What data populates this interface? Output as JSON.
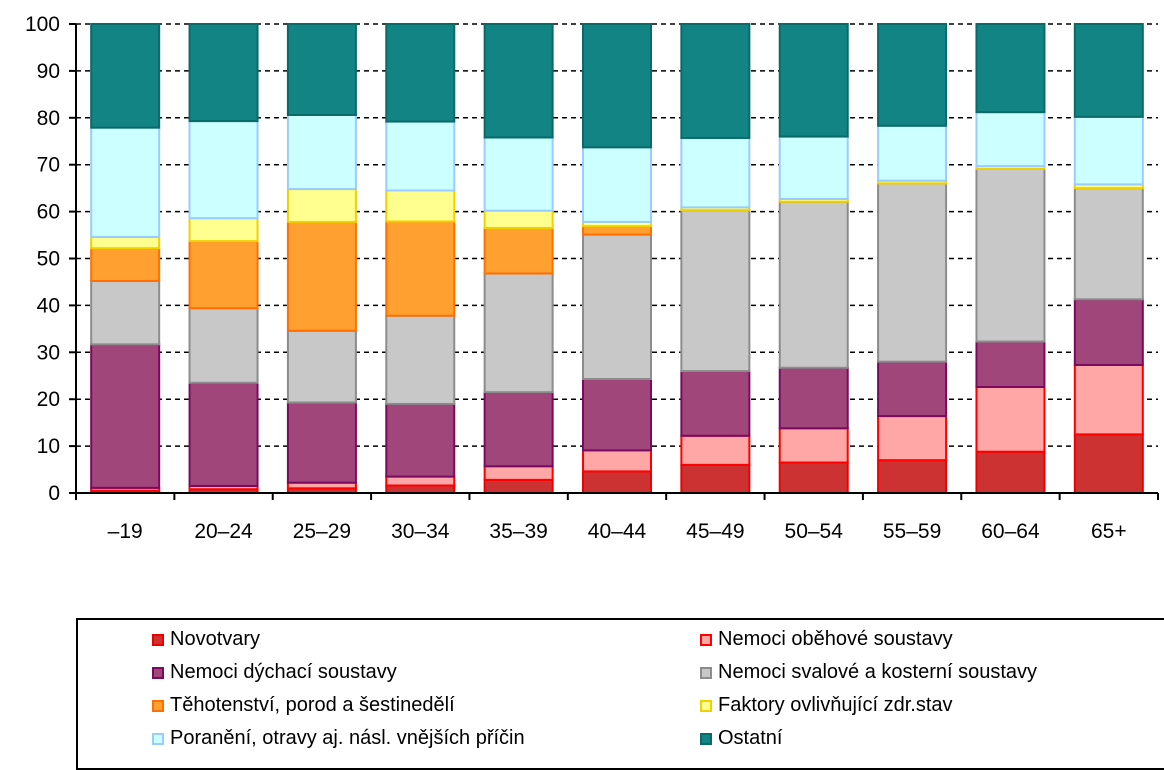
{
  "chart_data": {
    "type": "bar",
    "stacked": true,
    "title": "",
    "xlabel": "",
    "ylabel": "",
    "ylim": [
      0,
      100
    ],
    "yticks": [
      0,
      10,
      20,
      30,
      40,
      50,
      60,
      70,
      80,
      90,
      100
    ],
    "grid": true,
    "legend_position": "bottom",
    "categories": [
      "–19",
      "20–24",
      "25–29",
      "30–34",
      "35–39",
      "40–44",
      "45–49",
      "50–54",
      "55–59",
      "60–64",
      "65+"
    ],
    "series": [
      {
        "name": "Novotvary",
        "fill": "#cd3232",
        "stroke": "#ee0000",
        "values": [
          0.5,
          0.8,
          1.0,
          1.6,
          2.8,
          4.6,
          6.0,
          6.5,
          7.0,
          8.8,
          12.5
        ]
      },
      {
        "name": "Nemoci oběhové soustavy",
        "fill": "#ffa6a6",
        "stroke": "#ff0000",
        "values": [
          0.6,
          0.7,
          1.2,
          1.9,
          2.9,
          4.5,
          6.2,
          7.3,
          9.4,
          13.8,
          14.8
        ]
      },
      {
        "name": "Nemoci dýchací soustavy",
        "fill": "#a0467a",
        "stroke": "#7a0a60",
        "values": [
          30.6,
          22.0,
          17.1,
          15.5,
          15.8,
          15.2,
          13.8,
          12.9,
          11.6,
          9.7,
          14.0
        ]
      },
      {
        "name": "Nemoci svalové a kosterní soustavy",
        "fill": "#c8c8c8",
        "stroke": "#8c8c8c",
        "values": [
          13.5,
          15.9,
          15.3,
          18.8,
          25.3,
          30.8,
          34.3,
          35.4,
          38.0,
          36.8,
          23.7
        ]
      },
      {
        "name": "Těhotenství, porod a šestinedělí",
        "fill": "#ffa030",
        "stroke": "#ff7000",
        "values": [
          7.0,
          14.3,
          23.2,
          20.1,
          9.7,
          1.8,
          0.0,
          0.0,
          0.0,
          0.0,
          0.0
        ]
      },
      {
        "name": "Faktory ovlivňující zdr.stav",
        "fill": "#ffff90",
        "stroke": "#f0d000",
        "values": [
          2.4,
          4.9,
          7.0,
          6.6,
          3.7,
          0.9,
          0.6,
          0.6,
          0.6,
          0.6,
          0.8
        ]
      },
      {
        "name": "Poranění, otravy aj. násl. vnějších příčin",
        "fill": "#ccffff",
        "stroke": "#99ccff",
        "values": [
          23.3,
          20.7,
          15.8,
          14.7,
          15.6,
          15.9,
          14.8,
          13.3,
          11.7,
          11.5,
          14.4
        ]
      },
      {
        "name": "Ostatní",
        "fill": "#138484",
        "stroke": "#0a6a6a",
        "values": [
          22.1,
          20.7,
          19.4,
          20.8,
          24.2,
          26.3,
          24.3,
          24.0,
          21.7,
          18.8,
          19.8
        ]
      }
    ]
  }
}
